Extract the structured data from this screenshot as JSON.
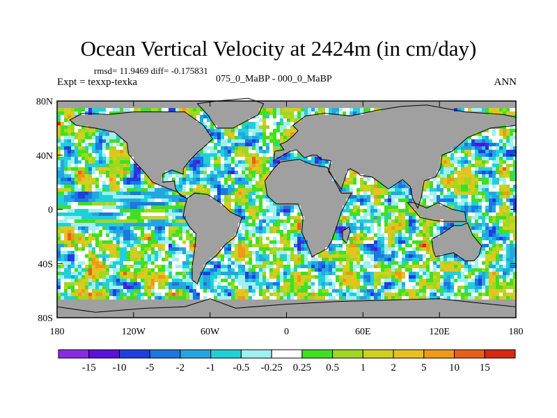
{
  "title": "Ocean Vertical Velocity at 2424m (in cm/day)",
  "stats": "rmsd= 11.9469 diff= -0.175831",
  "experiment": "Expt = texxp-texka",
  "comparison": "075_0_MaBP - 000_0_MaBP",
  "season": "ANN",
  "land_color": "#a0a0a0",
  "lat_ticks": [
    "80N",
    "40N",
    "0",
    "40S",
    "80S"
  ],
  "lon_ticks": [
    "180",
    "120W",
    "60W",
    "0",
    "60E",
    "120E",
    "180"
  ],
  "colorbar": {
    "colors": [
      "#8a2be2",
      "#5a10d8",
      "#1f3fe0",
      "#1a78e0",
      "#25a5e0",
      "#20d0d8",
      "#a0f0f0",
      "#ffffff",
      "#40e020",
      "#a0d820",
      "#d0d020",
      "#e8c020",
      "#f09818",
      "#e86018",
      "#d82810"
    ],
    "labels": [
      "-15",
      "-10",
      "-5",
      "-2",
      "-1",
      "-0.5",
      "-0.25",
      "0.25",
      "0.5",
      "1",
      "2",
      "5",
      "10",
      "15"
    ]
  }
}
